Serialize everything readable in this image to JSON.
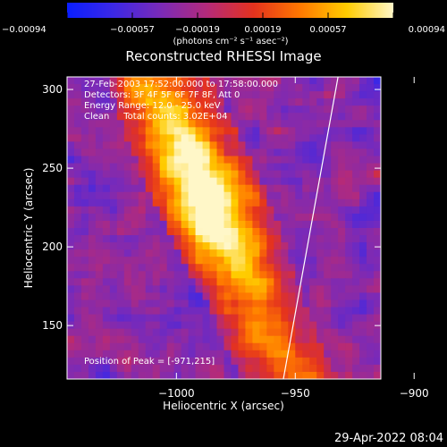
{
  "chart_data": {
    "type": "heatmap",
    "title": "Reconstructed RHESSI Image",
    "xlabel": "Heliocentric X (arcsec)",
    "ylabel": "Heliocentric Y (arcsec)",
    "xlim": [
      -1046,
      -914
    ],
    "ylim": [
      116,
      308
    ],
    "x_ticks": [
      {
        "value": -1000,
        "label": "−1000"
      },
      {
        "value": -950,
        "label": "−950"
      },
      {
        "value": -900,
        "label": "−900"
      }
    ],
    "y_ticks": [
      {
        "value": 150,
        "label": "150"
      },
      {
        "value": 200,
        "label": "200"
      },
      {
        "value": 250,
        "label": "250"
      },
      {
        "value": 300,
        "label": "300"
      }
    ],
    "colorbar": {
      "range": [
        -0.00094,
        0.00094
      ],
      "tick_labels": [
        "−0.00094",
        "−0.00057",
        "−0.00019",
        "0.00019",
        "0.00057",
        "0.00094"
      ],
      "unit_label": "(photons cm⁻² s⁻¹ asec⁻²)",
      "colors": [
        "#0a1eff",
        "#3c28e6",
        "#7a2ab8",
        "#b42a7a",
        "#e4321e",
        "#ff7800",
        "#ffcc00",
        "#fff7c8"
      ]
    },
    "annotations": {
      "time": "27-Feb-2003 17:52:00.000 to 17:58:00.000",
      "detectors": "Detectors: 3F 4F 5F 6F 7F 8F, Att 0",
      "energy": "Energy Range: 12.0 - 25.0 keV",
      "clean": "Clean     Total counts: 3.02E+04",
      "peak": "Position of Peak = [-971,215]"
    },
    "peak": {
      "x": -971,
      "y": 215
    },
    "limb_line": {
      "from": {
        "x": -955,
        "y": 116
      },
      "to": {
        "x": -932,
        "y": 308
      }
    }
  },
  "footer_date": "29-Apr-2022 08:04"
}
